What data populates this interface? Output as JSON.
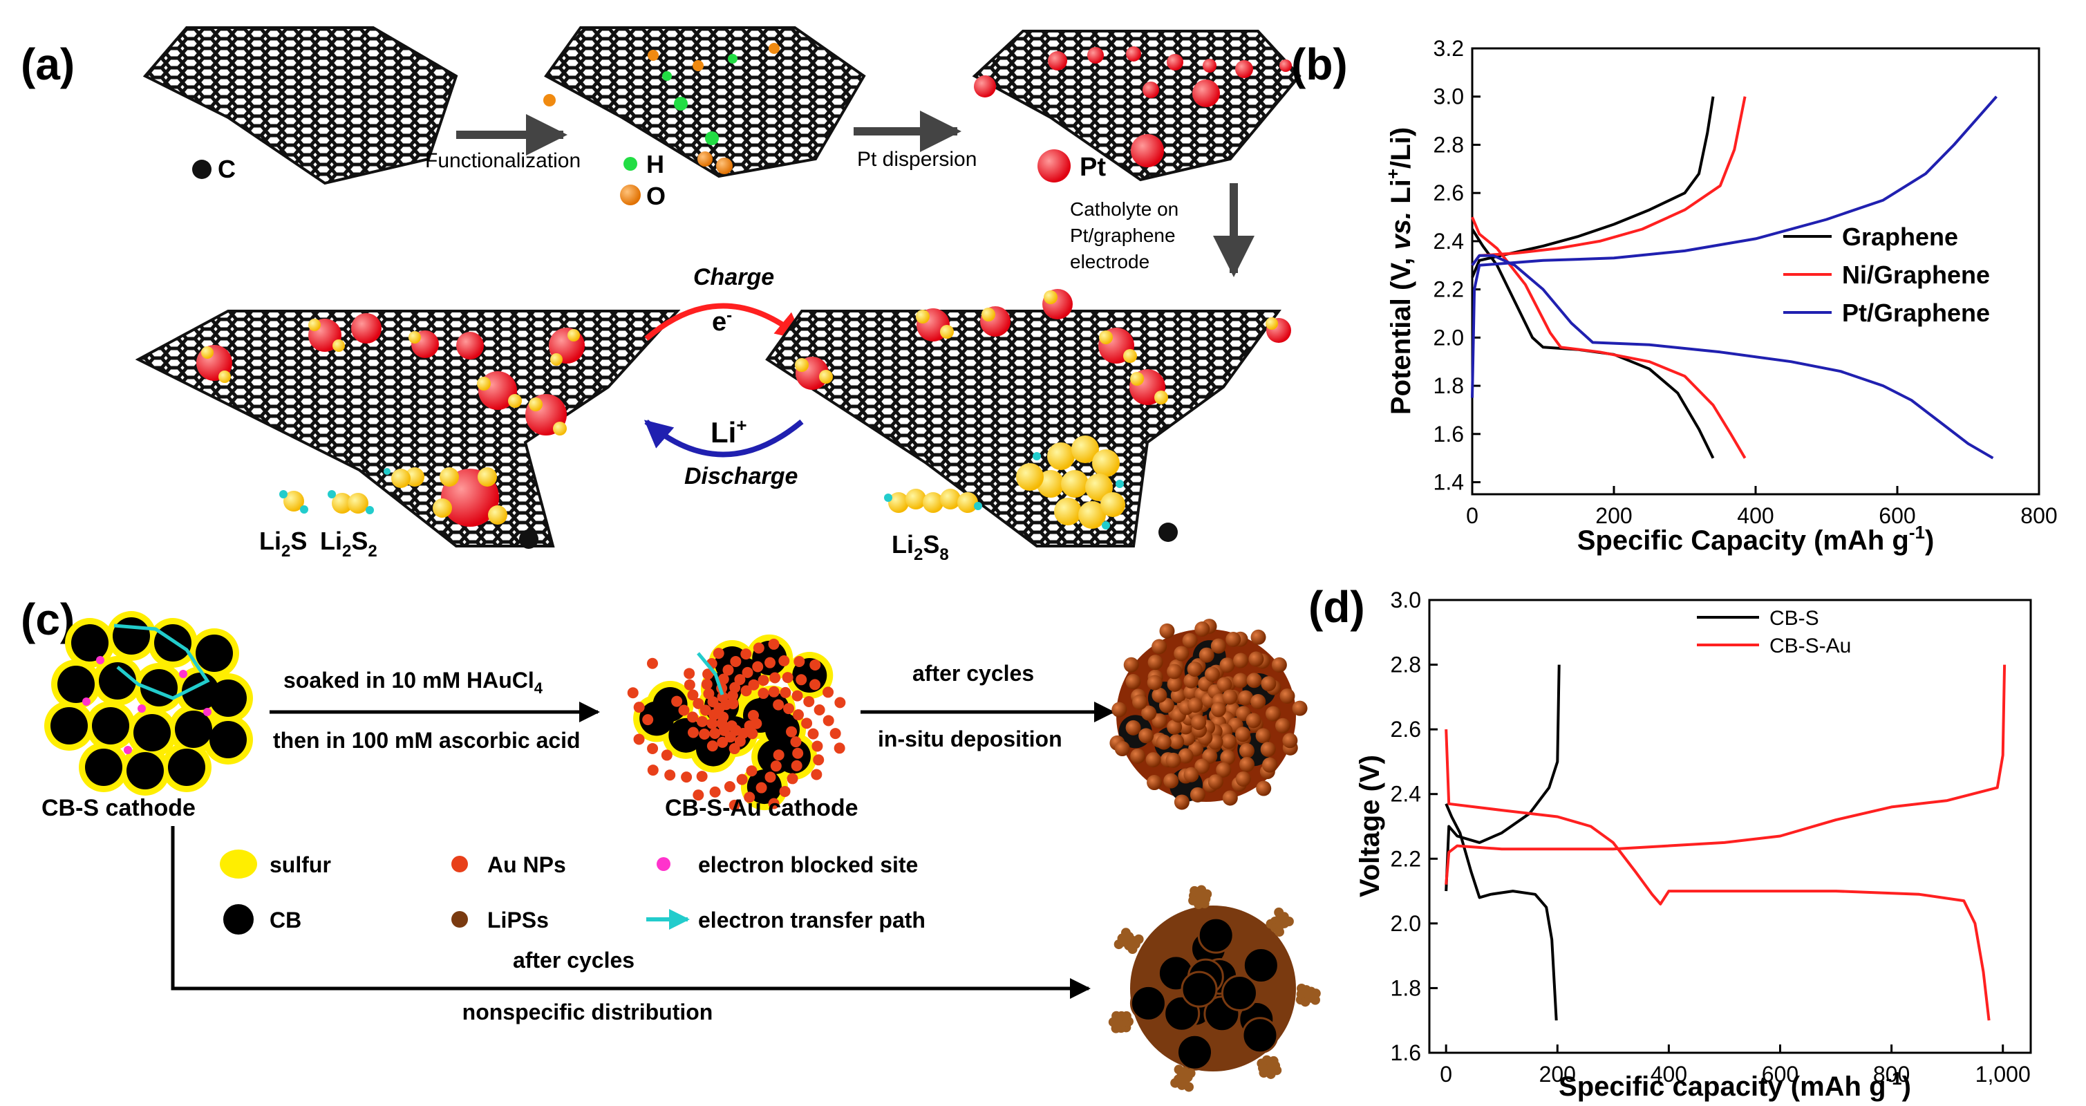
{
  "panels": {
    "a": {
      "letter": "(a)",
      "legend_c": "C",
      "legend_h": "H",
      "legend_o": "O",
      "legend_pt": "Pt",
      "arrow1": "Functionalization",
      "arrow2": "Pt dispersion",
      "catholyte_1": "Catholyte on",
      "catholyte_2": "Pt/graphene",
      "catholyte_3": "electrode",
      "charge": "Charge",
      "electron": "e",
      "electron_sup": "-",
      "li": "Li",
      "li_sup": "+",
      "discharge": "Discharge",
      "li2s": "Li",
      "li2s_sub": "2",
      "li2s_tail": "S",
      "li2s2_a": "Li",
      "li2s2_sub1": "2",
      "li2s2_b": "S",
      "li2s2_sub2": "2",
      "li2s8_a": "Li",
      "li2s8_sub1": "2",
      "li2s8_b": "S",
      "li2s8_sub2": "8"
    },
    "c": {
      "letter": "(c)",
      "cbs_cathode": "CB-S cathode",
      "soaked_1": "soaked in 10 mM HAuCl",
      "soaked_sub": "4",
      "soaked_2": "then in 100 mM ascorbic acid",
      "cbsau_cathode": "CB-S-Au cathode",
      "after_cycles_top": "after cycles",
      "insitu": "in-situ deposition",
      "legend_sulfur": "sulfur",
      "legend_cb": "CB",
      "legend_au": "Au NPs",
      "legend_lipss": "LiPSs",
      "legend_blocked": "electron blocked site",
      "legend_path": "electron transfer path",
      "after_cycles_bottom": "after cycles",
      "nonspecific": "nonspecific distribution"
    }
  },
  "colors": {
    "black_series": "#000000",
    "red_series": "#ff2020",
    "blue_series": "#2020b0",
    "sulfur": "#ffee00",
    "au": "#e8401a",
    "lipss": "#7a3a10",
    "blocked": "#ff33cc",
    "path": "#22cccc"
  },
  "chart_data": [
    {
      "panel_letter": "(b)",
      "type": "line",
      "xlabel": "Specific Capacity (mAh g",
      "xlabel_sup": "-1",
      "xlabel_tail": ")",
      "ylabel_parts": {
        "a": "Potential (V, ",
        "b": "vs.",
        "c": " Li",
        "sup": "+",
        "d": "/Li)"
      },
      "xlim": [
        0,
        800
      ],
      "ylim": [
        1.35,
        3.2
      ],
      "xticks": [
        "0",
        "200",
        "400",
        "600",
        "800"
      ],
      "yticks": [
        "1.4",
        "1.6",
        "1.8",
        "2.0",
        "2.2",
        "2.4",
        "2.6",
        "2.8",
        "3.0",
        "3.2"
      ],
      "legend": [
        "Graphene",
        "Ni/Graphene",
        "Pt/Graphene"
      ],
      "series": [
        {
          "name": "Graphene",
          "color": "#000000",
          "discharge": [
            [
              0,
              2.45
            ],
            [
              15,
              2.38
            ],
            [
              35,
              2.3
            ],
            [
              60,
              2.15
            ],
            [
              85,
              2.0
            ],
            [
              100,
              1.96
            ],
            [
              150,
              1.95
            ],
            [
              200,
              1.93
            ],
            [
              250,
              1.87
            ],
            [
              290,
              1.77
            ],
            [
              320,
              1.62
            ],
            [
              340,
              1.5
            ]
          ],
          "charge": [
            [
              0,
              2.25
            ],
            [
              10,
              2.32
            ],
            [
              40,
              2.34
            ],
            [
              100,
              2.38
            ],
            [
              150,
              2.42
            ],
            [
              200,
              2.47
            ],
            [
              250,
              2.53
            ],
            [
              300,
              2.6
            ],
            [
              320,
              2.68
            ],
            [
              332,
              2.85
            ],
            [
              340,
              3.0
            ]
          ]
        },
        {
          "name": "Ni/Graphene",
          "color": "#ff2020",
          "discharge": [
            [
              0,
              2.5
            ],
            [
              10,
              2.43
            ],
            [
              35,
              2.37
            ],
            [
              75,
              2.22
            ],
            [
              110,
              2.02
            ],
            [
              125,
              1.96
            ],
            [
              180,
              1.94
            ],
            [
              250,
              1.9
            ],
            [
              300,
              1.84
            ],
            [
              340,
              1.72
            ],
            [
              365,
              1.6
            ],
            [
              385,
              1.5
            ]
          ],
          "charge": [
            [
              0,
              2.3
            ],
            [
              10,
              2.34
            ],
            [
              60,
              2.35
            ],
            [
              120,
              2.37
            ],
            [
              180,
              2.4
            ],
            [
              240,
              2.45
            ],
            [
              300,
              2.53
            ],
            [
              350,
              2.63
            ],
            [
              370,
              2.78
            ],
            [
              385,
              3.0
            ]
          ]
        },
        {
          "name": "Pt/Graphene",
          "color": "#2020b0",
          "discharge": [
            [
              0,
              2.3
            ],
            [
              10,
              2.34
            ],
            [
              30,
              2.34
            ],
            [
              60,
              2.3
            ],
            [
              100,
              2.2
            ],
            [
              140,
              2.06
            ],
            [
              170,
              1.98
            ],
            [
              250,
              1.97
            ],
            [
              350,
              1.94
            ],
            [
              450,
              1.9
            ],
            [
              520,
              1.86
            ],
            [
              580,
              1.8
            ],
            [
              620,
              1.74
            ],
            [
              660,
              1.65
            ],
            [
              700,
              1.56
            ],
            [
              735,
              1.5
            ]
          ],
          "charge": [
            [
              0,
              1.75
            ],
            [
              3,
              2.2
            ],
            [
              10,
              2.3
            ],
            [
              100,
              2.32
            ],
            [
              200,
              2.33
            ],
            [
              300,
              2.36
            ],
            [
              400,
              2.41
            ],
            [
              500,
              2.49
            ],
            [
              580,
              2.57
            ],
            [
              640,
              2.68
            ],
            [
              680,
              2.8
            ],
            [
              710,
              2.9
            ],
            [
              740,
              3.0
            ]
          ]
        }
      ]
    },
    {
      "panel_letter": "(d)",
      "type": "line",
      "xlabel": "Specific capacity (mAh g",
      "xlabel_sup": "-1",
      "xlabel_tail": ")",
      "ylabel": "Voltage (V)",
      "xlim": [
        -30,
        1050
      ],
      "ylim": [
        1.6,
        3.0
      ],
      "xticks": [
        "0",
        "200",
        "400",
        "600",
        "800",
        "1,000"
      ],
      "yticks": [
        "1.6",
        "1.8",
        "2.0",
        "2.2",
        "2.4",
        "2.6",
        "2.8",
        "3.0"
      ],
      "legend": [
        "CB-S",
        "CB-S-Au"
      ],
      "series": [
        {
          "name": "CB-S",
          "color": "#000000",
          "discharge": [
            [
              0,
              2.37
            ],
            [
              10,
              2.33
            ],
            [
              25,
              2.28
            ],
            [
              45,
              2.16
            ],
            [
              60,
              2.08
            ],
            [
              80,
              2.09
            ],
            [
              120,
              2.1
            ],
            [
              160,
              2.09
            ],
            [
              180,
              2.05
            ],
            [
              190,
              1.95
            ],
            [
              198,
              1.7
            ]
          ],
          "charge": [
            [
              0,
              2.1
            ],
            [
              5,
              2.3
            ],
            [
              20,
              2.27
            ],
            [
              60,
              2.25
            ],
            [
              100,
              2.28
            ],
            [
              150,
              2.34
            ],
            [
              185,
              2.42
            ],
            [
              200,
              2.5
            ],
            [
              203,
              2.8
            ]
          ]
        },
        {
          "name": "CB-S-Au",
          "color": "#ff2020",
          "discharge": [
            [
              0,
              2.6
            ],
            [
              5,
              2.37
            ],
            [
              100,
              2.35
            ],
            [
              200,
              2.33
            ],
            [
              260,
              2.3
            ],
            [
              300,
              2.25
            ],
            [
              340,
              2.16
            ],
            [
              370,
              2.09
            ],
            [
              385,
              2.06
            ],
            [
              400,
              2.1
            ],
            [
              500,
              2.1
            ],
            [
              700,
              2.1
            ],
            [
              850,
              2.09
            ],
            [
              930,
              2.07
            ],
            [
              950,
              2.0
            ],
            [
              965,
              1.85
            ],
            [
              975,
              1.7
            ]
          ],
          "charge": [
            [
              0,
              2.12
            ],
            [
              5,
              2.22
            ],
            [
              20,
              2.24
            ],
            [
              100,
              2.23
            ],
            [
              300,
              2.23
            ],
            [
              500,
              2.25
            ],
            [
              600,
              2.27
            ],
            [
              700,
              2.32
            ],
            [
              800,
              2.36
            ],
            [
              900,
              2.38
            ],
            [
              990,
              2.42
            ],
            [
              1000,
              2.52
            ],
            [
              1003,
              2.8
            ]
          ]
        }
      ]
    }
  ]
}
